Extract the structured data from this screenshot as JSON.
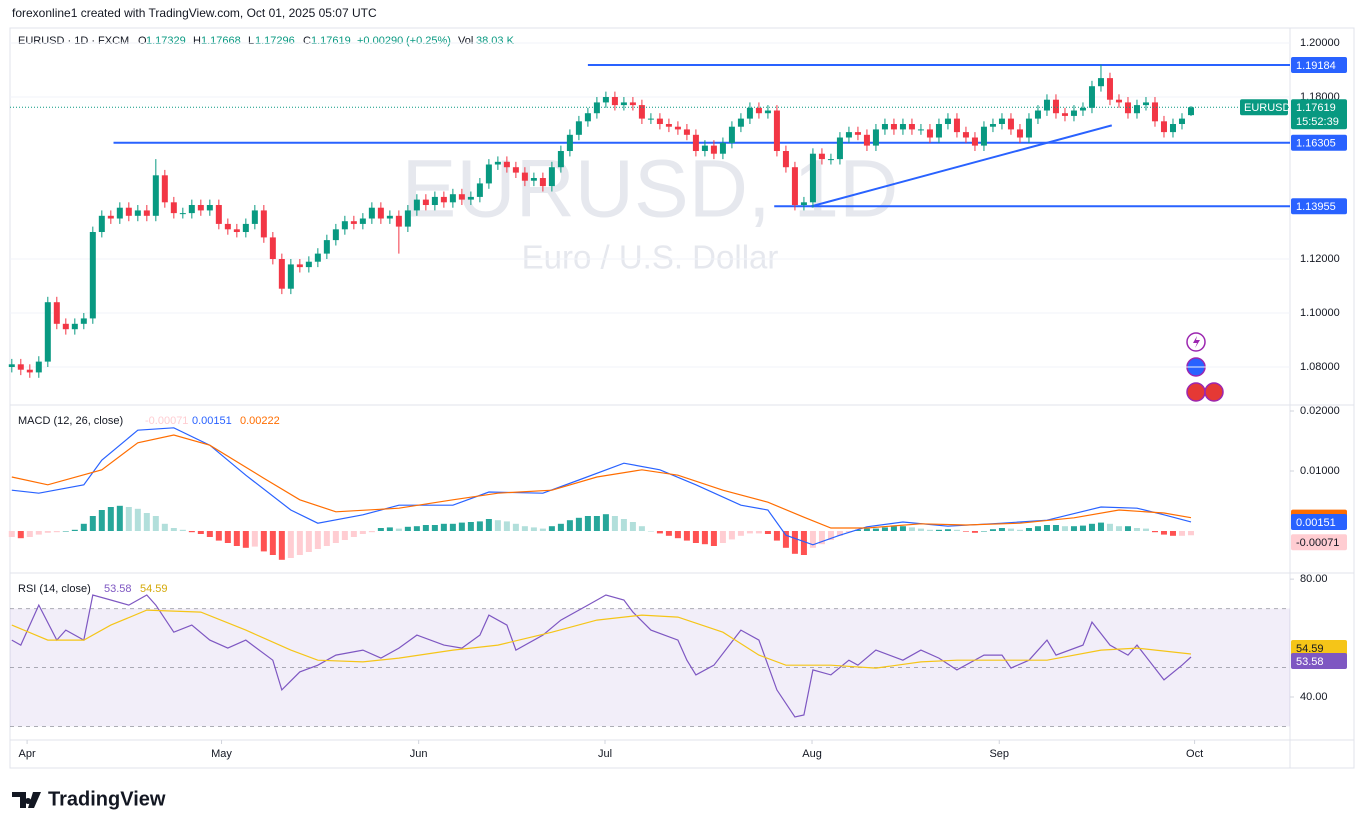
{
  "header": {
    "credit": "forexonline1 created with TradingView.com, Oct 01, 2025 05:07 UTC",
    "symbol": "EURUSD · 1D · FXCM",
    "o_label": "O",
    "h_label": "H",
    "l_label": "L",
    "c_label": "C",
    "change": {
      "value": 0.0029,
      "label": "+0.00290"
    },
    "change_pct": {
      "value": 0.25,
      "label": "(+0.25%)"
    },
    "vol_label": "Vol",
    "volume": {
      "value": 38030,
      "label": "38.03 K"
    }
  },
  "watermark": {
    "title": "EURUSD, 1D",
    "subtitle": "Euro / U.S. Dollar"
  },
  "footer": {
    "brand": "TradingView"
  },
  "chart_data": [
    {
      "type": "candlestick",
      "symbol": "EURUSD",
      "countdown": "15:52:39",
      "up_color": "#089981",
      "down_color": "#f23645",
      "open": [
        1.08,
        1.081,
        1.079,
        1.078,
        1.082,
        1.104,
        1.096,
        1.094,
        1.096,
        1.098,
        1.13,
        1.136,
        1.135,
        1.139,
        1.136,
        1.138,
        1.136,
        1.151,
        1.141,
        1.137,
        1.137,
        1.14,
        1.138,
        1.14,
        1.133,
        1.131,
        1.13,
        1.133,
        1.138,
        1.128,
        1.12,
        1.109,
        1.118,
        1.117,
        1.119,
        1.122,
        1.127,
        1.131,
        1.134,
        1.133,
        1.135,
        1.139,
        1.135,
        1.136,
        1.132,
        1.138,
        1.142,
        1.14,
        1.143,
        1.141,
        1.144,
        1.142,
        1.143,
        1.148,
        1.155,
        1.156,
        1.154,
        1.152,
        1.149,
        1.15,
        1.147,
        1.154,
        1.16,
        1.166,
        1.171,
        1.174,
        1.178,
        1.18,
        1.177,
        1.178,
        1.177,
        1.172,
        1.172,
        1.17,
        1.169,
        1.168,
        1.166,
        1.16,
        1.162,
        1.159,
        1.163,
        1.169,
        1.172,
        1.176,
        1.174,
        1.175,
        1.16,
        1.154,
        1.14,
        1.141,
        1.159,
        1.157,
        1.157,
        1.165,
        1.167,
        1.166,
        1.162,
        1.168,
        1.17,
        1.168,
        1.17,
        1.168,
        1.168,
        1.165,
        1.17,
        1.172,
        1.167,
        1.165,
        1.162,
        1.169,
        1.17,
        1.172,
        1.168,
        1.165,
        1.172,
        1.175,
        1.179,
        1.174,
        1.173,
        1.175,
        1.176,
        1.184,
        1.187,
        1.179,
        1.178,
        1.174,
        1.177,
        1.178,
        1.171,
        1.167,
        1.17,
        1.17329
      ],
      "high": [
        1.083,
        1.083,
        1.081,
        1.084,
        1.106,
        1.106,
        1.098,
        1.098,
        1.1,
        1.132,
        1.138,
        1.138,
        1.141,
        1.141,
        1.14,
        1.14,
        1.157,
        1.153,
        1.143,
        1.139,
        1.142,
        1.142,
        1.142,
        1.142,
        1.135,
        1.133,
        1.135,
        1.14,
        1.14,
        1.13,
        1.122,
        1.12,
        1.12,
        1.121,
        1.124,
        1.129,
        1.133,
        1.136,
        1.136,
        1.137,
        1.141,
        1.141,
        1.138,
        1.138,
        1.14,
        1.144,
        1.144,
        1.145,
        1.145,
        1.146,
        1.146,
        1.145,
        1.15,
        1.157,
        1.158,
        1.158,
        1.156,
        1.154,
        1.152,
        1.152,
        1.156,
        1.162,
        1.168,
        1.173,
        1.176,
        1.18,
        1.182,
        1.182,
        1.18,
        1.18,
        1.179,
        1.174,
        1.174,
        1.172,
        1.171,
        1.17,
        1.168,
        1.164,
        1.164,
        1.165,
        1.171,
        1.174,
        1.178,
        1.178,
        1.177,
        1.177,
        1.162,
        1.156,
        1.143,
        1.161,
        1.161,
        1.159,
        1.167,
        1.169,
        1.169,
        1.168,
        1.17,
        1.172,
        1.172,
        1.172,
        1.172,
        1.17,
        1.17,
        1.172,
        1.174,
        1.174,
        1.169,
        1.167,
        1.171,
        1.172,
        1.174,
        1.174,
        1.17,
        1.174,
        1.177,
        1.181,
        1.181,
        1.176,
        1.177,
        1.178,
        1.186,
        1.192,
        1.189,
        1.181,
        1.18,
        1.179,
        1.18,
        1.18,
        1.173,
        1.172,
        1.174,
        1.17668
      ],
      "low": [
        1.078,
        1.077,
        1.076,
        1.076,
        1.08,
        1.094,
        1.092,
        1.092,
        1.094,
        1.096,
        1.128,
        1.133,
        1.133,
        1.134,
        1.134,
        1.134,
        1.134,
        1.139,
        1.135,
        1.135,
        1.135,
        1.136,
        1.136,
        1.131,
        1.129,
        1.128,
        1.128,
        1.131,
        1.126,
        1.118,
        1.107,
        1.107,
        1.115,
        1.115,
        1.117,
        1.12,
        1.125,
        1.129,
        1.131,
        1.131,
        1.133,
        1.133,
        1.133,
        1.122,
        1.13,
        1.136,
        1.138,
        1.138,
        1.139,
        1.139,
        1.14,
        1.14,
        1.141,
        1.146,
        1.153,
        1.152,
        1.15,
        1.147,
        1.147,
        1.145,
        1.145,
        1.152,
        1.158,
        1.164,
        1.169,
        1.172,
        1.176,
        1.175,
        1.175,
        1.175,
        1.17,
        1.17,
        1.168,
        1.167,
        1.166,
        1.164,
        1.158,
        1.158,
        1.157,
        1.157,
        1.161,
        1.167,
        1.17,
        1.172,
        1.172,
        1.158,
        1.152,
        1.138,
        1.138,
        1.139,
        1.155,
        1.155,
        1.155,
        1.163,
        1.164,
        1.16,
        1.16,
        1.166,
        1.166,
        1.166,
        1.166,
        1.166,
        1.163,
        1.163,
        1.168,
        1.165,
        1.163,
        1.16,
        1.16,
        1.167,
        1.168,
        1.166,
        1.163,
        1.163,
        1.17,
        1.173,
        1.172,
        1.171,
        1.171,
        1.173,
        1.174,
        1.182,
        1.177,
        1.176,
        1.172,
        1.172,
        1.175,
        1.169,
        1.165,
        1.165,
        1.168,
        1.17296
      ],
      "close": [
        1.081,
        1.079,
        1.078,
        1.082,
        1.104,
        1.096,
        1.094,
        1.096,
        1.098,
        1.13,
        1.136,
        1.135,
        1.139,
        1.136,
        1.138,
        1.136,
        1.151,
        1.141,
        1.137,
        1.137,
        1.14,
        1.138,
        1.14,
        1.133,
        1.131,
        1.13,
        1.133,
        1.138,
        1.128,
        1.12,
        1.109,
        1.118,
        1.117,
        1.119,
        1.122,
        1.127,
        1.131,
        1.134,
        1.133,
        1.135,
        1.139,
        1.135,
        1.136,
        1.132,
        1.138,
        1.142,
        1.14,
        1.143,
        1.141,
        1.144,
        1.142,
        1.143,
        1.148,
        1.155,
        1.156,
        1.154,
        1.152,
        1.149,
        1.15,
        1.147,
        1.154,
        1.16,
        1.166,
        1.171,
        1.174,
        1.178,
        1.18,
        1.177,
        1.178,
        1.177,
        1.172,
        1.172,
        1.17,
        1.169,
        1.168,
        1.166,
        1.16,
        1.162,
        1.159,
        1.163,
        1.169,
        1.172,
        1.176,
        1.174,
        1.175,
        1.16,
        1.154,
        1.14,
        1.141,
        1.159,
        1.157,
        1.157,
        1.165,
        1.167,
        1.166,
        1.162,
        1.168,
        1.17,
        1.168,
        1.17,
        1.168,
        1.168,
        1.165,
        1.17,
        1.172,
        1.167,
        1.165,
        1.162,
        1.169,
        1.17,
        1.172,
        1.168,
        1.165,
        1.172,
        1.175,
        1.179,
        1.174,
        1.173,
        1.175,
        1.176,
        1.184,
        1.187,
        1.179,
        1.178,
        1.174,
        1.177,
        1.178,
        1.171,
        1.167,
        1.17,
        1.172,
        1.17619
      ],
      "xlim": [
        -0.2,
        142
      ],
      "xticks": [
        {
          "value": 1.7,
          "label": "Apr"
        },
        {
          "value": 23.3,
          "label": "May"
        },
        {
          "value": 45.2,
          "label": "Jun"
        },
        {
          "value": 65.9,
          "label": "Jul"
        },
        {
          "value": 88.9,
          "label": "Aug"
        },
        {
          "value": 109.7,
          "label": "Sep"
        },
        {
          "value": 131.4,
          "label": "Oct"
        }
      ],
      "ylim": [
        1.06593,
        1.20556
      ],
      "yticks": [
        {
          "value": 1.08,
          "label": "1.08000"
        },
        {
          "value": 1.1,
          "label": "1.10000"
        },
        {
          "value": 1.12,
          "label": "1.12000"
        },
        {
          "value": 1.18,
          "label": "1.18000"
        },
        {
          "value": 1.2,
          "label": "1.20000"
        }
      ],
      "grid": true,
      "level_color": "#2962ff",
      "levels": [
        {
          "value": 1.19184,
          "from": 64
        },
        {
          "value": 1.16305,
          "from": 11.3
        },
        {
          "value": 1.13955,
          "from": 84.7
        }
      ],
      "trendline": {
        "x": [
          88.8,
          122.2
        ],
        "y": [
          1.1395,
          1.1695
        ]
      }
    },
    {
      "type": "combo",
      "title": "MACD (12, 26, close)",
      "ylim": [
        -0.007,
        0.021
      ],
      "yticks": [
        {
          "value": 0.01,
          "label": "0.01000"
        },
        {
          "value": 0.02,
          "label": "0.02000"
        }
      ],
      "hist_colors": {
        "rise_above": "#26a69a",
        "fall_above": "#b2dfdb",
        "fall_below": "#ff5252",
        "rise_below": "#ffcdd2"
      },
      "histogram": [
        -0.001,
        -0.0012,
        -0.001,
        -0.0006,
        -0.0003,
        -0.0002,
        0.0,
        0.0002,
        0.0012,
        0.0025,
        0.0035,
        0.004,
        0.0042,
        0.004,
        0.0037,
        0.003,
        0.0025,
        0.0012,
        0.0005,
        0.0002,
        -0.0002,
        -0.0005,
        -0.001,
        -0.0016,
        -0.002,
        -0.0025,
        -0.0028,
        -0.0026,
        -0.0034,
        -0.004,
        -0.0048,
        -0.0045,
        -0.004,
        -0.0035,
        -0.003,
        -0.0025,
        -0.002,
        -0.0015,
        -0.001,
        -0.0005,
        -0.0002,
        0.0005,
        0.0006,
        0.0004,
        0.0007,
        0.0008,
        0.001,
        0.001,
        0.0012,
        0.0012,
        0.0014,
        0.0015,
        0.0016,
        0.002,
        0.0018,
        0.0016,
        0.0012,
        0.0008,
        0.0006,
        0.0004,
        0.0008,
        0.0012,
        0.0018,
        0.0022,
        0.0025,
        0.0025,
        0.0028,
        0.0025,
        0.002,
        0.0015,
        0.0008,
        0.0,
        -0.0004,
        -0.0008,
        -0.0012,
        -0.0016,
        -0.002,
        -0.0022,
        -0.0025,
        -0.002,
        -0.0014,
        -0.0008,
        -0.0004,
        -0.0004,
        -0.0005,
        -0.0016,
        -0.0028,
        -0.0038,
        -0.004,
        -0.0028,
        -0.0022,
        -0.0015,
        -0.0008,
        -0.0002,
        0.0002,
        0.0004,
        0.0004,
        0.0006,
        0.0008,
        0.0008,
        0.0006,
        0.0004,
        0.0002,
        0.0002,
        0.0003,
        0.0002,
        -0.0001,
        -0.0003,
        0.0,
        0.0003,
        0.0005,
        0.0004,
        0.0002,
        0.0005,
        0.0008,
        0.001,
        0.001,
        0.0008,
        0.0008,
        0.0009,
        0.0012,
        0.0014,
        0.0012,
        0.0008,
        0.0008,
        0.0005,
        0.0004,
        -0.0002,
        -0.0006,
        -0.0008,
        -0.0008,
        -0.00071
      ],
      "series": [
        {
          "color": "#2962ff",
          "x": [
            0,
            3,
            8,
            10,
            14,
            18,
            22,
            26,
            31,
            34,
            39,
            43,
            49,
            53,
            59,
            63,
            68,
            72,
            76,
            81,
            84,
            86,
            89,
            92,
            95,
            99,
            104,
            110,
            115,
            121,
            125,
            128,
            131
          ],
          "values": [
            0.0068,
            0.0063,
            0.0077,
            0.0118,
            0.0168,
            0.0172,
            0.0143,
            0.0093,
            0.0035,
            0.0013,
            0.0027,
            0.0043,
            0.0043,
            0.0065,
            0.0063,
            0.0085,
            0.0113,
            0.0102,
            0.0077,
            0.0043,
            0.0035,
            -0.0007,
            -0.0023,
            -0.0007,
            0.0007,
            0.0015,
            0.0008,
            0.0013,
            0.0018,
            0.004,
            0.0038,
            0.0027,
            0.00151
          ]
        },
        {
          "color": "#ff6d00",
          "x": [
            0,
            4,
            10,
            14,
            18,
            22,
            28,
            32,
            36,
            43,
            49,
            54,
            60,
            65,
            70,
            74,
            79,
            84,
            88,
            91,
            95,
            101,
            106,
            112,
            118,
            123,
            128,
            131
          ],
          "values": [
            0.009,
            0.0077,
            0.0102,
            0.0147,
            0.016,
            0.0143,
            0.0088,
            0.0052,
            0.0032,
            0.0038,
            0.0052,
            0.0063,
            0.0068,
            0.009,
            0.0102,
            0.0093,
            0.0068,
            0.0048,
            0.0023,
            0.0005,
            0.0005,
            0.0012,
            0.001,
            0.0013,
            0.0022,
            0.0035,
            0.003,
            0.00222
          ]
        }
      ]
    },
    {
      "type": "line",
      "title": "RSI (14, close)",
      "ylim": [
        25.4,
        81.4
      ],
      "yticks": [
        {
          "value": 40,
          "label": "40.00"
        },
        {
          "value": 80,
          "label": "80.00"
        }
      ],
      "band": [
        30,
        70
      ],
      "midline": 50,
      "band_color": "#7e57c2",
      "series": [
        {
          "color": "#7e57c2",
          "x": [
            0,
            1,
            3,
            5,
            6,
            8,
            9,
            11,
            13,
            15,
            16,
            18,
            20,
            22,
            24,
            26,
            29,
            30,
            32,
            34,
            36,
            39,
            41,
            43,
            45,
            48,
            50,
            52,
            53,
            55,
            56,
            59,
            61,
            64,
            66,
            68,
            69,
            71,
            74,
            75,
            76,
            78,
            81,
            83,
            85,
            87,
            88,
            89,
            91,
            93,
            94,
            96,
            99,
            101,
            103,
            105,
            108,
            110,
            111,
            113,
            115,
            116,
            119,
            120,
            122,
            124,
            125,
            128,
            130,
            131
          ],
          "values": [
            59.3,
            57.6,
            71.2,
            59.3,
            62.7,
            59.3,
            74.6,
            72.9,
            71.2,
            74.6,
            71.2,
            62.0,
            64.4,
            59.3,
            56.6,
            59.3,
            52.5,
            42.4,
            48.5,
            50.8,
            54.2,
            55.9,
            53.2,
            56.6,
            61.0,
            57.6,
            56.6,
            61.0,
            67.8,
            64.4,
            55.9,
            61.0,
            66.1,
            71.2,
            74.6,
            72.9,
            68.8,
            62.7,
            59.3,
            52.5,
            47.5,
            50.8,
            62.7,
            59.3,
            42.4,
            33.2,
            33.9,
            49.2,
            47.5,
            52.5,
            50.8,
            55.9,
            52.5,
            55.9,
            53.2,
            49.2,
            54.2,
            54.2,
            49.8,
            52.5,
            59.3,
            54.2,
            57.6,
            65.4,
            57.6,
            54.2,
            57.6,
            45.8,
            50.8,
            53.58
          ]
        },
        {
          "color": "#f5c518",
          "x": [
            0,
            4,
            8,
            11,
            15,
            21,
            26,
            31,
            34,
            39,
            43,
            49,
            54,
            60,
            65,
            70,
            74,
            79,
            83,
            86,
            91,
            96,
            101,
            105,
            110,
            115,
            121,
            125,
            131
          ],
          "values": [
            64.4,
            59.3,
            59.3,
            64.4,
            69.5,
            68.8,
            62.7,
            55.9,
            52.5,
            51.9,
            53.2,
            55.9,
            57.6,
            62.0,
            66.1,
            67.8,
            67.1,
            62.0,
            54.2,
            50.8,
            50.8,
            49.8,
            51.9,
            52.5,
            52.5,
            52.5,
            55.9,
            56.6,
            54.59
          ]
        }
      ]
    }
  ]
}
